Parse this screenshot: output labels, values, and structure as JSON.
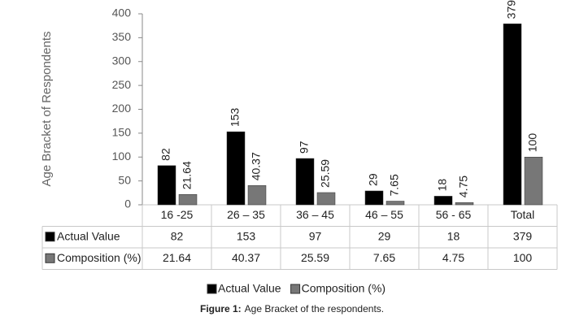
{
  "chart_data": {
    "type": "bar",
    "y_label": "Age Bracket of Respondents",
    "categories": [
      "16 -25",
      "26 – 35",
      "36 – 45",
      "46 – 55",
      "56 - 65",
      "Total"
    ],
    "series": [
      {
        "name": "Actual Value",
        "color": "#000000",
        "values": [
          82,
          153,
          97,
          29,
          18,
          379
        ]
      },
      {
        "name": "Composition (%)",
        "color": "#777777",
        "values": [
          21.64,
          40.37,
          25.59,
          7.65,
          4.75,
          100
        ]
      }
    ],
    "ylim": [
      0,
      400
    ],
    "yticks": [
      0,
      50,
      100,
      150,
      200,
      250,
      300,
      350,
      400
    ],
    "legend": "bottom",
    "caption": {
      "label": "Figure 1:",
      "text": "Age Bracket of the respondents."
    }
  }
}
